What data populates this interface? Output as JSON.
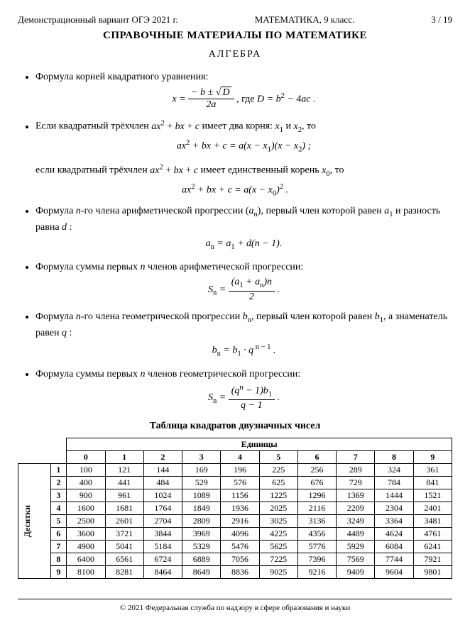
{
  "header": {
    "left": "Демонстрационный вариант ОГЭ 2021 г.",
    "center": "МАТЕМАТИКА, 9 класс.",
    "right": "3 / 19"
  },
  "title": "СПРАВОЧНЫЕ МАТЕРИАЛЫ ПО МАТЕМАТИКЕ",
  "section": "АЛГЕБРА",
  "items": {
    "quad_roots": "Формула корней квадратного уравнения:",
    "trinomial_intro": "Если квадратный трёхчлен ",
    "trinomial_cont": " имеет два корня: ",
    "and": " и ",
    "then": ", то",
    "single_root_intro": "если квадратный трёхчлен ",
    "single_root_cont": " имеет единственный корень ",
    "arith_nth": "Формула ",
    "arith_nth2": "-го члена арифметической прогрессии ",
    "arith_nth3": ", первый член которой равен ",
    "arith_nth4": " и разность равна ",
    "arith_sum": "Формула суммы первых ",
    "arith_sum2": " членов арифметической прогрессии:",
    "geo_nth": "Формула ",
    "geo_nth2": "-го члена геометрической прогрессии ",
    "geo_nth3": ", первый член которой равен ",
    "geo_nth4": ", а знаменатель равен ",
    "geo_sum": "Формула суммы первых ",
    "geo_sum2": " членов геометрической прогрессии:"
  },
  "table": {
    "title": "Таблица квадратов двузначных чисел",
    "col_header": "Единицы",
    "row_header": "Десятки",
    "cols": [
      "0",
      "1",
      "2",
      "3",
      "4",
      "5",
      "6",
      "7",
      "8",
      "9"
    ],
    "rows": [
      "1",
      "2",
      "3",
      "4",
      "5",
      "6",
      "7",
      "8",
      "9"
    ],
    "data": [
      [
        100,
        121,
        144,
        169,
        196,
        225,
        256,
        289,
        324,
        361
      ],
      [
        400,
        441,
        484,
        529,
        576,
        625,
        676,
        729,
        784,
        841
      ],
      [
        900,
        961,
        1024,
        1089,
        1156,
        1225,
        1296,
        1369,
        1444,
        1521
      ],
      [
        1600,
        1681,
        1764,
        1849,
        1936,
        2025,
        2116,
        2209,
        2304,
        2401
      ],
      [
        2500,
        2601,
        2704,
        2809,
        2916,
        3025,
        3136,
        3249,
        3364,
        3481
      ],
      [
        3600,
        3721,
        3844,
        3969,
        4096,
        4225,
        4356,
        4489,
        4624,
        4761
      ],
      [
        4900,
        5041,
        5184,
        5329,
        5476,
        5625,
        5776,
        5929,
        6084,
        6241
      ],
      [
        6400,
        6561,
        6724,
        6889,
        7056,
        7225,
        7396,
        7569,
        7744,
        7921
      ],
      [
        8100,
        8281,
        8464,
        8649,
        8836,
        9025,
        9216,
        9409,
        9604,
        9801
      ]
    ]
  },
  "footer": "© 2021 Федеральная служба по надзору в сфере образования и науки"
}
